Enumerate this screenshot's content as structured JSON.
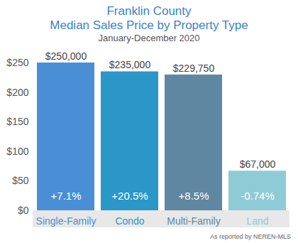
{
  "chart_data": {
    "type": "bar",
    "title": [
      "Franklin County",
      "Median Sales Price by Property Type"
    ],
    "subtitle": "January-December 2020",
    "caption": "As reported by NEREN-MLS",
    "categories": [
      "Single-Family",
      "Condo",
      "Multi-Family",
      "Land"
    ],
    "values": [
      250,
      235,
      229.75,
      67
    ],
    "value_labels": [
      "$250,000",
      "$235,000",
      "$229,750",
      "$67,000"
    ],
    "annotations": [
      "+7.1%",
      "+20.5%",
      "+8.5%",
      "-0.74%"
    ],
    "colors": [
      "#4a8fd6",
      "#2b97c9",
      "#5f87a2",
      "#8fcbd6"
    ],
    "ylim": [
      0,
      250
    ],
    "yticks": [
      {
        "value": 0,
        "label": "$0"
      },
      {
        "value": 50,
        "label": "$50"
      },
      {
        "value": 100,
        "label": "$100"
      },
      {
        "value": 150,
        "label": "$150"
      },
      {
        "value": 200,
        "label": "$200"
      },
      {
        "value": 250,
        "label": "$250"
      }
    ],
    "grid": false,
    "data_labels": true
  }
}
